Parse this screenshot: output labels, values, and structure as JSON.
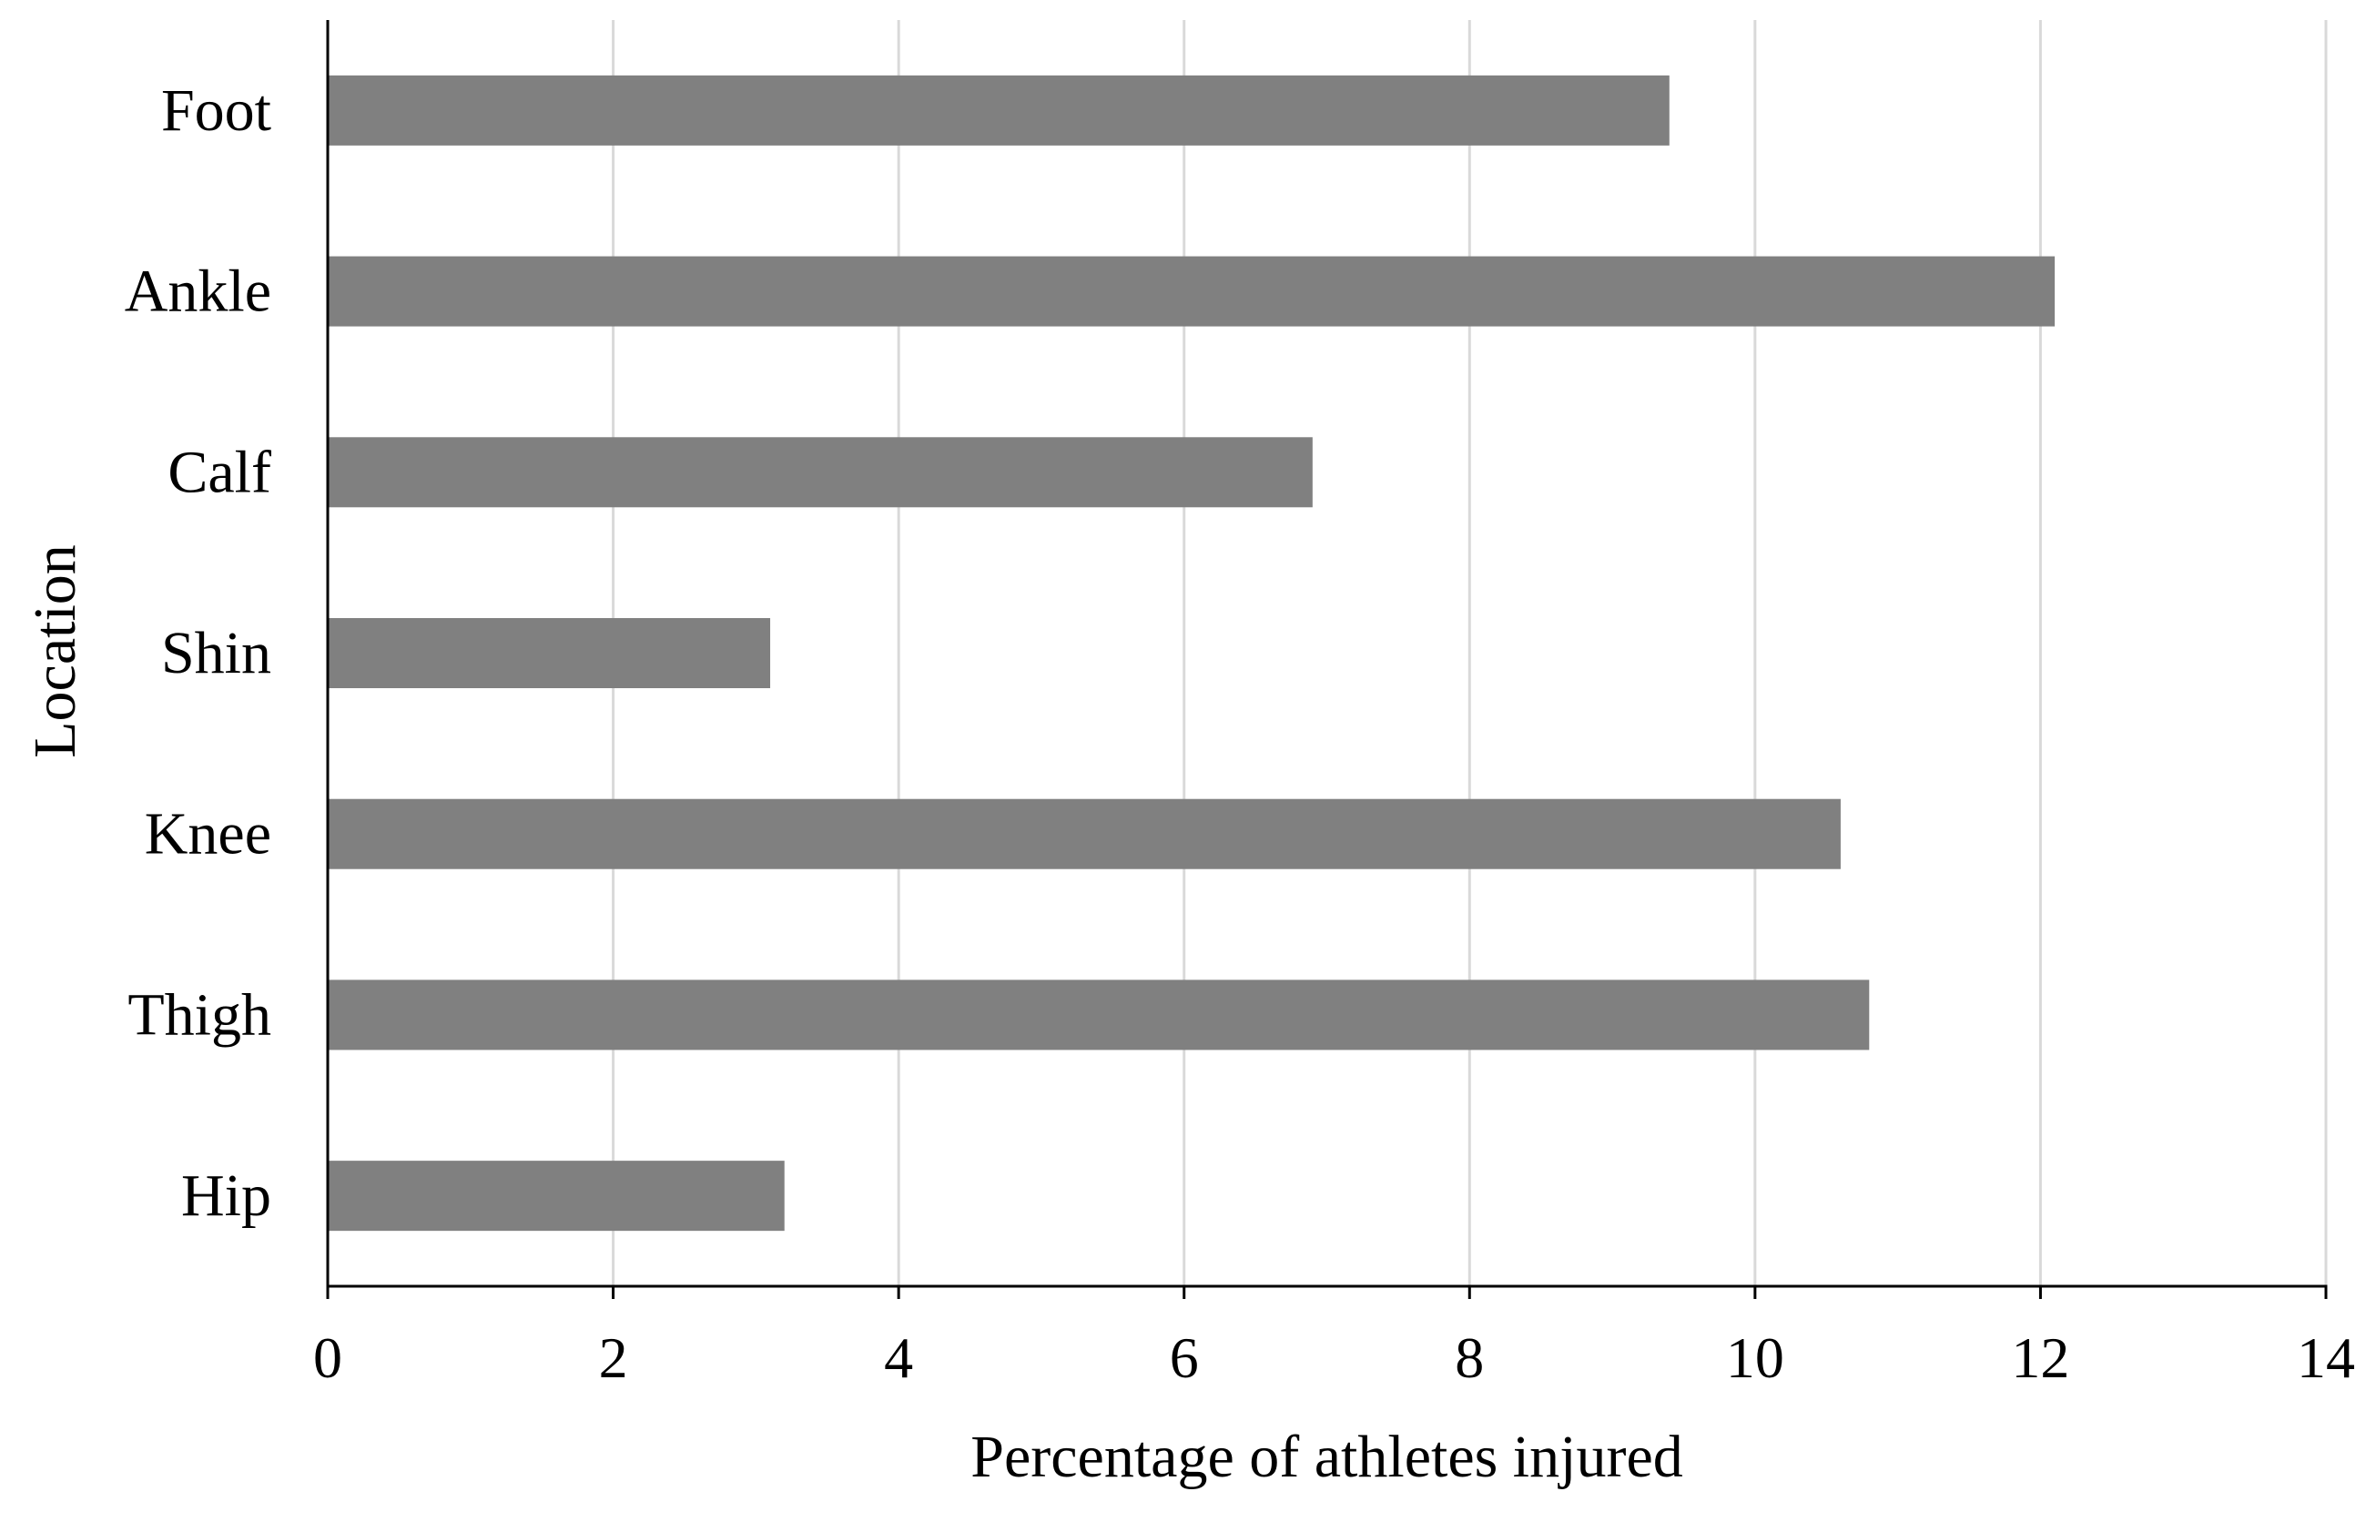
{
  "chart_data": {
    "type": "bar",
    "orientation": "horizontal",
    "categories": [
      "Foot",
      "Ankle",
      "Calf",
      "Shin",
      "Knee",
      "Thigh",
      "Hip"
    ],
    "values": [
      9.4,
      12.1,
      6.9,
      3.1,
      10.6,
      10.8,
      3.2
    ],
    "xlabel": "Percentage of athletes injured",
    "ylabel": "Location",
    "xlim": [
      0,
      14
    ],
    "xticks": [
      0,
      2,
      4,
      6,
      8,
      10,
      12,
      14
    ],
    "grid": "vertical",
    "legend": "none",
    "colors": {
      "bar": "#808080",
      "grid": "#d9d9d9",
      "axis": "#000000"
    }
  }
}
